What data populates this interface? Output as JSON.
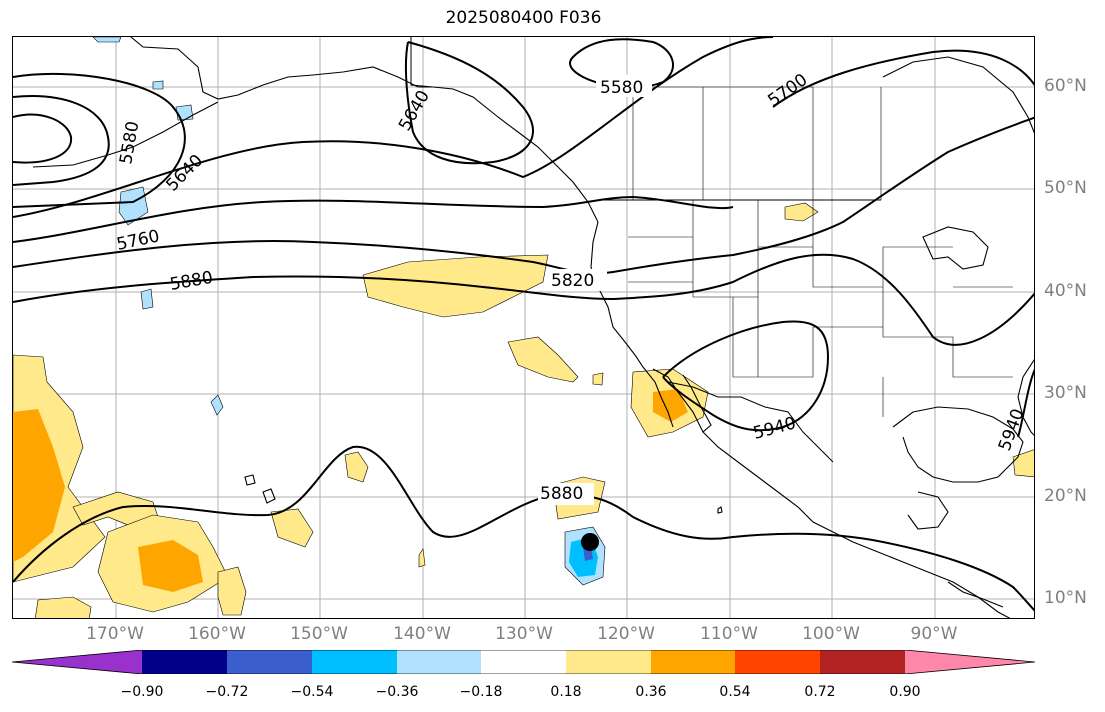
{
  "title": "2025080400 F036",
  "lat_labels": [
    "60°N",
    "50°N",
    "40°N",
    "30°N",
    "20°N",
    "10°N"
  ],
  "lon_labels": [
    "170°W",
    "160°W",
    "150°W",
    "140°W",
    "130°W",
    "120°W",
    "110°W",
    "100°W",
    "90°W"
  ],
  "contour_labels": [
    "5580",
    "5580",
    "5640",
    "5640",
    "5700",
    "5760",
    "5880",
    "5820",
    "5880",
    "5940",
    "5940"
  ],
  "colorbar": {
    "ticks": [
      "−0.90",
      "−0.72",
      "−0.54",
      "−0.36",
      "−0.18",
      "0.18",
      "0.36",
      "0.54",
      "0.72",
      "0.90"
    ],
    "colors": [
      "#9932cc",
      "#00008b",
      "#3a5fcd",
      "#00bfff",
      "#b0e2ff",
      "#ffffff",
      "#ffe98a",
      "#ffa500",
      "#ff4500",
      "#b22222",
      "#ff88aa",
      "#ff88aa"
    ]
  },
  "colors": {
    "positive_light": "#ffe98a",
    "positive_mid": "#ffa500",
    "negative_light": "#b0e2ff",
    "negative_mid": "#00bfff",
    "negative_dark": "#3a5fcd",
    "gridline": "#b0b0b0",
    "tick_label": "#808080"
  }
}
